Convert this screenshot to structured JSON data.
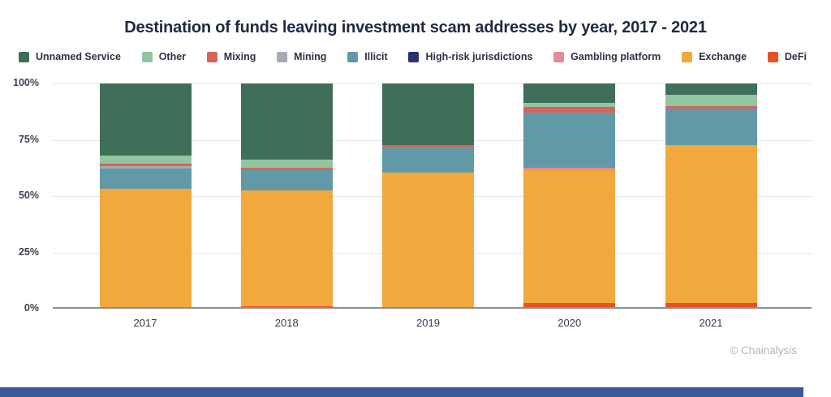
{
  "title": "Destination of funds leaving investment scam addresses by year, 2017 - 2021",
  "attribution": "© Chainalysis",
  "colors": {
    "background": "#ffffff",
    "title_text": "#222842",
    "legend_text": "#2d3245",
    "gridline": "#e5e6e9",
    "axis_line": "#8a8e97",
    "axis_text": "#3b4153",
    "attribution_text": "#b3b7bf",
    "bottom_bar": "#3b5998"
  },
  "chart_data": {
    "type": "bar",
    "stacked": true,
    "title": "Destination of funds leaving investment scam addresses by year, 2017 - 2021",
    "xlabel": "",
    "ylabel": "",
    "ylim": [
      0,
      100
    ],
    "grid": true,
    "legend_position": "top",
    "categories": [
      "2017",
      "2018",
      "2019",
      "2020",
      "2021"
    ],
    "y_ticks": [
      "100%",
      "75%",
      "50%",
      "25%",
      "0%"
    ],
    "series": [
      {
        "name": "Unnamed Service",
        "color": "#3F6E59",
        "values": [
          32.4,
          34.0,
          27.7,
          8.6,
          5.0
        ]
      },
      {
        "name": "Other",
        "color": "#92C6A1",
        "values": [
          3.6,
          3.6,
          0,
          1.8,
          5.1
        ]
      },
      {
        "name": "Mixing",
        "color": "#D6655C",
        "values": [
          0.8,
          1.0,
          1.1,
          2.5,
          1.0
        ]
      },
      {
        "name": "Mining",
        "color": "#A5ABB5",
        "values": [
          1.1,
          0,
          0,
          0,
          0
        ]
      },
      {
        "name": "Illicit",
        "color": "#6299A6",
        "values": [
          9.1,
          9.4,
          11.2,
          24.8,
          16.3
        ]
      },
      {
        "name": "High-risk jurisdictions",
        "color": "#293270",
        "values": [
          0,
          0,
          0,
          0,
          0
        ]
      },
      {
        "name": "Gambling platform",
        "color": "#E28B99",
        "values": [
          0,
          0,
          0,
          1.1,
          0
        ]
      },
      {
        "name": "Exchange",
        "color": "#F1A83C",
        "values": [
          53.0,
          51.5,
          60.0,
          59.4,
          70.8
        ]
      },
      {
        "name": "DeFi",
        "color": "#E55325",
        "values": [
          0,
          0.5,
          0,
          1.8,
          1.8
        ]
      }
    ]
  }
}
